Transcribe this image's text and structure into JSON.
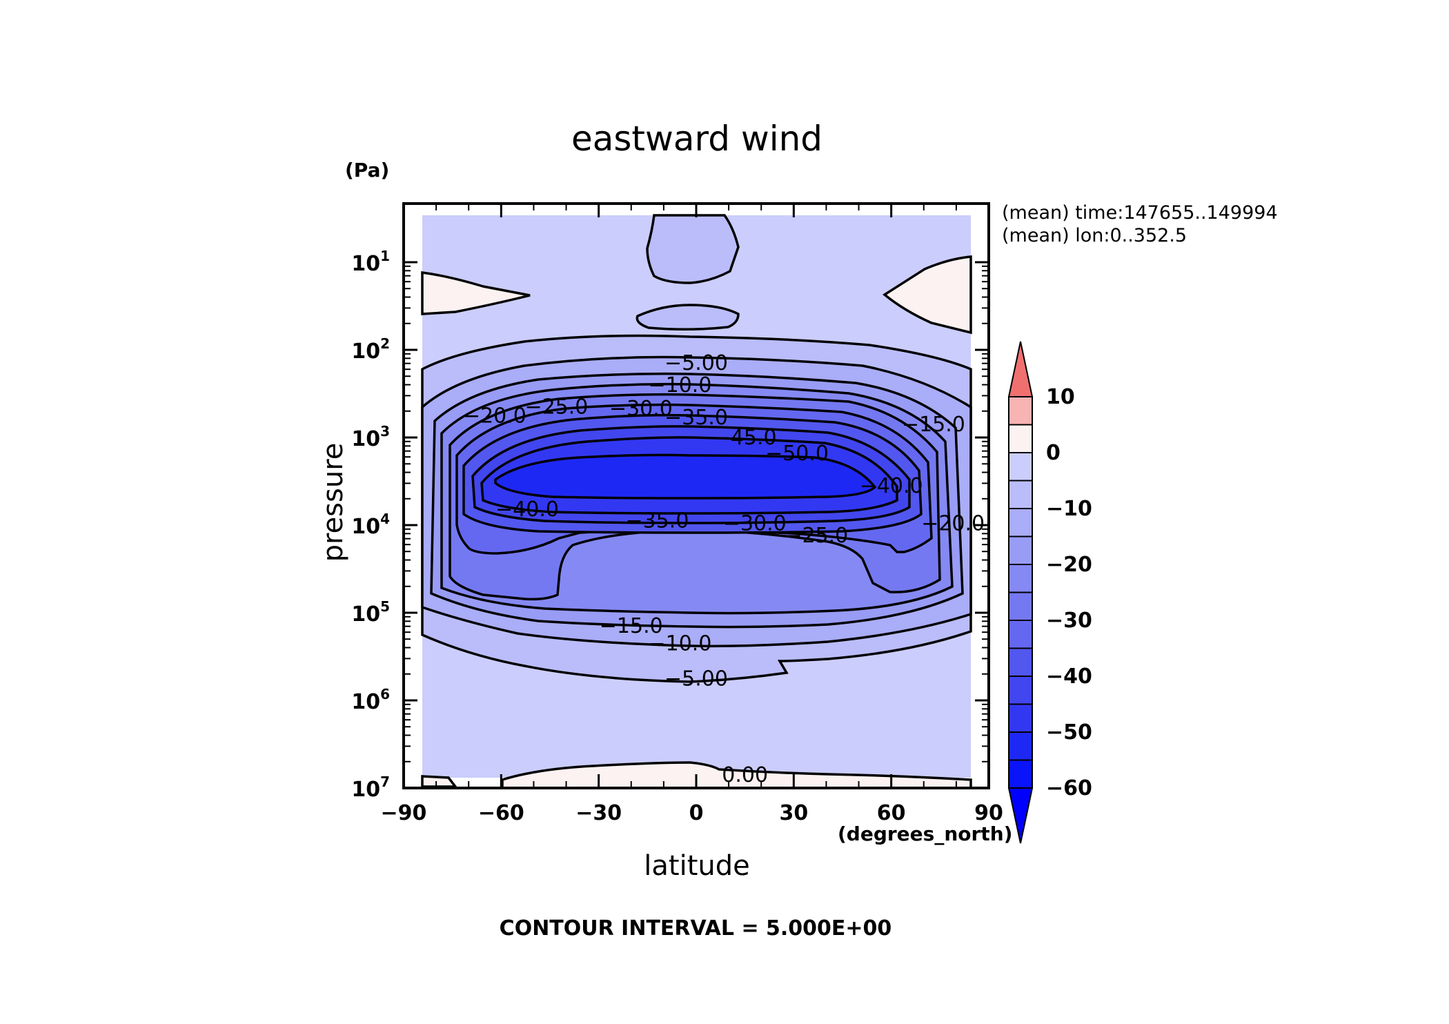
{
  "chart_data": {
    "type": "contour",
    "title": "eastward wind",
    "xlabel": "latitude",
    "x_unit": "(degrees_north)",
    "ylabel": "pressure",
    "y_unit": "(Pa)",
    "xlim": [
      -90,
      90
    ],
    "ylim": [
      10000000,
      3
    ],
    "y_scale": "log",
    "x_ticks": [
      {
        "value": -90,
        "label": "−90"
      },
      {
        "value": -60,
        "label": "−60"
      },
      {
        "value": -30,
        "label": "−30"
      },
      {
        "value": 0,
        "label": "0"
      },
      {
        "value": 30,
        "label": "30"
      },
      {
        "value": 60,
        "label": "60"
      },
      {
        "value": 90,
        "label": "90"
      }
    ],
    "y_ticks": [
      {
        "exp": 1,
        "base": "10",
        "sup": "1"
      },
      {
        "exp": 2,
        "base": "10",
        "sup": "2"
      },
      {
        "exp": 3,
        "base": "10",
        "sup": "3"
      },
      {
        "exp": 4,
        "base": "10",
        "sup": "4"
      },
      {
        "exp": 5,
        "base": "10",
        "sup": "5"
      },
      {
        "exp": 6,
        "base": "10",
        "sup": "6"
      },
      {
        "exp": 7,
        "base": "10",
        "sup": "7"
      }
    ],
    "annotations": [
      "(mean) time:147655..149994",
      "(mean) lon:0..352.5"
    ],
    "footer": "CONTOUR INTERVAL = 5.000E+00",
    "contour_interval": 5,
    "colorbar": {
      "min": -60,
      "max": 10,
      "extend": "both",
      "labels": [
        {
          "value": 10,
          "label": "10"
        },
        {
          "value": 0,
          "label": "0"
        },
        {
          "value": -10,
          "label": "−10"
        },
        {
          "value": -20,
          "label": "−20"
        },
        {
          "value": -30,
          "label": "−30"
        },
        {
          "value": -40,
          "label": "−40"
        },
        {
          "value": -50,
          "label": "−50"
        },
        {
          "value": -60,
          "label": "−60"
        }
      ],
      "level_colors": [
        {
          "from": -60,
          "to": -55,
          "color": "#0a14f8"
        },
        {
          "from": -55,
          "to": -50,
          "color": "#1e28f4"
        },
        {
          "from": -50,
          "to": -45,
          "color": "#3238f2"
        },
        {
          "from": -45,
          "to": -40,
          "color": "#4246ee"
        },
        {
          "from": -40,
          "to": -35,
          "color": "#5257ef"
        },
        {
          "from": -35,
          "to": -30,
          "color": "#6468f0"
        },
        {
          "from": -30,
          "to": -25,
          "color": "#7479f1"
        },
        {
          "from": -25,
          "to": -20,
          "color": "#8589f3"
        },
        {
          "from": -20,
          "to": -15,
          "color": "#989cf5"
        },
        {
          "from": -15,
          "to": -10,
          "color": "#aaadf7"
        },
        {
          "from": -10,
          "to": -5,
          "color": "#babdfa"
        },
        {
          "from": -5,
          "to": 0,
          "color": "#cbcdfc"
        },
        {
          "from": 0,
          "to": 5,
          "color": "#fdf2f2"
        },
        {
          "from": 5,
          "to": 10,
          "color": "#f8b3b3"
        }
      ],
      "under_color": "#0000ff",
      "over_color": "#f07070"
    },
    "contour_labels": [
      {
        "value": -5,
        "text": "−5.00",
        "lat": 0,
        "logp": 2.15
      },
      {
        "value": -10,
        "text": "−10.0",
        "lat": -5,
        "logp": 2.4
      },
      {
        "value": -20,
        "text": "−20.0",
        "lat": -62,
        "logp": 2.75
      },
      {
        "value": -25,
        "text": "−25.0",
        "lat": -43,
        "logp": 2.65
      },
      {
        "value": -30,
        "text": "−30.0",
        "lat": -17,
        "logp": 2.67
      },
      {
        "value": -35,
        "text": "−35.0",
        "lat": 0,
        "logp": 2.77
      },
      {
        "value": -45,
        "text": "−45.0",
        "lat": 15,
        "logp": 3.0
      },
      {
        "value": -50,
        "text": "−50.0",
        "lat": 31,
        "logp": 3.18
      },
      {
        "value": -15,
        "text": "−15.0",
        "lat": 73,
        "logp": 2.85
      },
      {
        "value": -40,
        "text": "−40.0",
        "lat": 60,
        "logp": 3.55
      },
      {
        "value": -40,
        "text": "−40.0",
        "lat": -52,
        "logp": 3.82
      },
      {
        "value": -35,
        "text": "−35.0",
        "lat": -12,
        "logp": 3.95
      },
      {
        "value": -30,
        "text": "−30.0",
        "lat": 18,
        "logp": 3.98
      },
      {
        "value": -25,
        "text": "−25.0",
        "lat": 37,
        "logp": 4.12
      },
      {
        "value": -20,
        "text": "−20.0",
        "lat": 79,
        "logp": 3.98
      },
      {
        "value": -15,
        "text": "−15.0",
        "lat": -20,
        "logp": 5.15
      },
      {
        "value": -10,
        "text": "−10.0",
        "lat": -5,
        "logp": 5.35
      },
      {
        "value": -5,
        "text": "−5.00",
        "lat": 0,
        "logp": 5.75
      },
      {
        "value": 0,
        "text": "0.00",
        "lat": 15,
        "logp": 6.85
      }
    ]
  }
}
